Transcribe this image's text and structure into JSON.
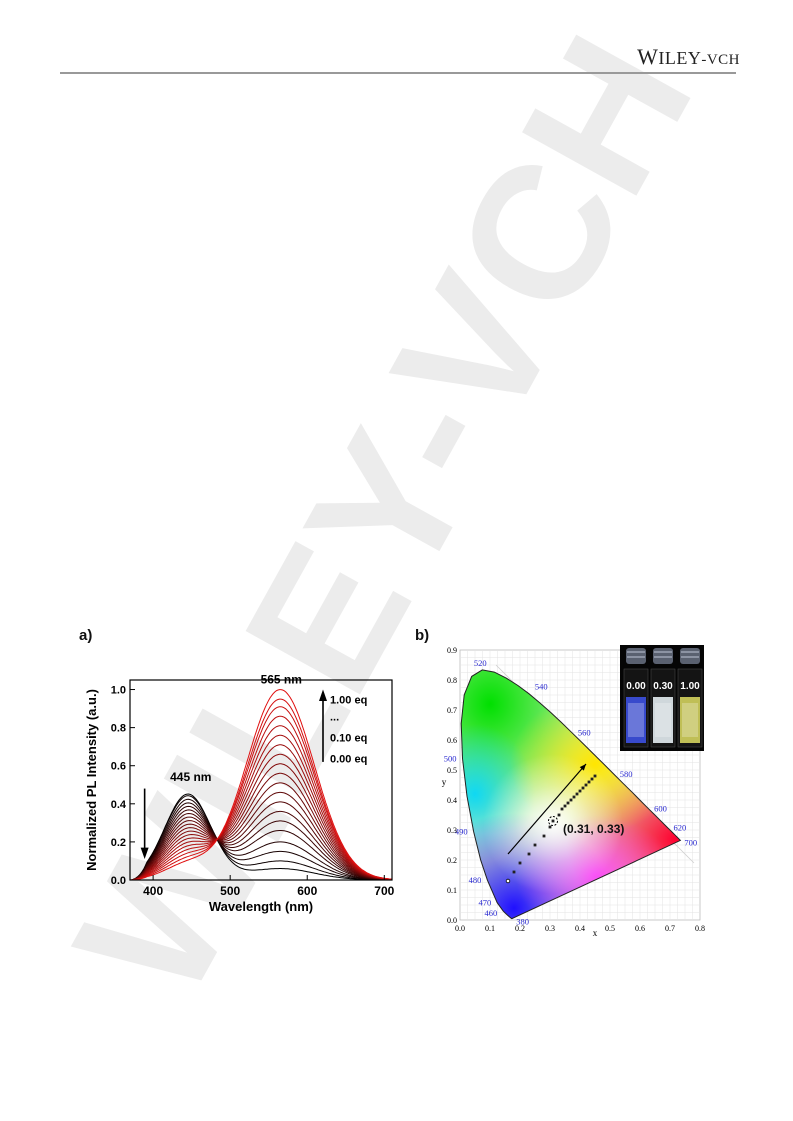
{
  "header": {
    "publisher_big": "W",
    "publisher_rest": "ILEY",
    "publisher_suffix": "-VCH"
  },
  "watermark": {
    "text": "WILEY-VCH"
  },
  "figure": {
    "panel_a_label": "a)",
    "panel_b_label": "b)"
  },
  "chart_data": [
    {
      "type": "line",
      "xlabel": "Wavelength (nm)",
      "ylabel": "Normalized PL Intensity (a.u.)",
      "xlim": [
        370,
        710
      ],
      "ylim": [
        0.0,
        1.05
      ],
      "xticks": [
        400,
        500,
        600,
        700
      ],
      "yticks": [
        0.0,
        0.2,
        0.4,
        0.6,
        0.8,
        1.0
      ],
      "annotations": [
        "445 nm",
        "565 nm"
      ],
      "legend_labels": [
        "1.00 eq",
        "...",
        "0.10 eq",
        "0.00 eq"
      ],
      "isosbestic_point": {
        "x": 500,
        "y": 0.2
      },
      "series_colors": {
        "start": "#000000",
        "end": "#e01010"
      },
      "series": [
        {
          "name": "0.00 eq",
          "peak1_nm": 445,
          "peak1": 0.45,
          "peak2_nm": 565,
          "peak2": 0.06
        },
        {
          "peak1_nm": 445,
          "peak1": 0.44,
          "peak2_nm": 565,
          "peak2": 0.1
        },
        {
          "peak1_nm": 445,
          "peak1": 0.42,
          "peak2_nm": 565,
          "peak2": 0.15
        },
        {
          "peak1_nm": 445,
          "peak1": 0.4,
          "peak2_nm": 565,
          "peak2": 0.2
        },
        {
          "peak1_nm": 445,
          "peak1": 0.38,
          "peak2_nm": 565,
          "peak2": 0.26
        },
        {
          "peak1_nm": 445,
          "peak1": 0.36,
          "peak2_nm": 565,
          "peak2": 0.31
        },
        {
          "peak1_nm": 445,
          "peak1": 0.34,
          "peak2_nm": 565,
          "peak2": 0.36
        },
        {
          "peak1_nm": 445,
          "peak1": 0.32,
          "peak2_nm": 565,
          "peak2": 0.41
        },
        {
          "peak1_nm": 445,
          "peak1": 0.3,
          "peak2_nm": 565,
          "peak2": 0.46
        },
        {
          "peak1_nm": 445,
          "peak1": 0.28,
          "peak2_nm": 565,
          "peak2": 0.51
        },
        {
          "name": "0.10 eq",
          "peak1_nm": 445,
          "peak1": 0.26,
          "peak2_nm": 565,
          "peak2": 0.56
        },
        {
          "peak1_nm": 445,
          "peak1": 0.24,
          "peak2_nm": 565,
          "peak2": 0.61
        },
        {
          "peak1_nm": 445,
          "peak1": 0.22,
          "peak2_nm": 565,
          "peak2": 0.66
        },
        {
          "peak1_nm": 445,
          "peak1": 0.2,
          "peak2_nm": 565,
          "peak2": 0.71
        },
        {
          "peak1_nm": 445,
          "peak1": 0.18,
          "peak2_nm": 565,
          "peak2": 0.76
        },
        {
          "peak1_nm": 445,
          "peak1": 0.16,
          "peak2_nm": 565,
          "peak2": 0.81
        },
        {
          "peak1_nm": 445,
          "peak1": 0.14,
          "peak2_nm": 565,
          "peak2": 0.86
        },
        {
          "peak1_nm": 445,
          "peak1": 0.12,
          "peak2_nm": 565,
          "peak2": 0.91
        },
        {
          "peak1_nm": 445,
          "peak1": 0.1,
          "peak2_nm": 565,
          "peak2": 0.95
        },
        {
          "name": "1.00 eq",
          "peak1_nm": 445,
          "peak1": 0.08,
          "peak2_nm": 565,
          "peak2": 1.0
        }
      ]
    },
    {
      "type": "scatter",
      "xlabel": "x",
      "ylabel": "y",
      "xlim": [
        0.0,
        0.8
      ],
      "ylim": [
        0.0,
        0.9
      ],
      "xticks": [
        0.0,
        0.1,
        0.2,
        0.3,
        0.4,
        0.5,
        0.6,
        0.7,
        0.8
      ],
      "yticks": [
        0.0,
        0.1,
        0.2,
        0.3,
        0.4,
        0.5,
        0.6,
        0.7,
        0.8,
        0.9
      ],
      "grid": true,
      "spectral_locus_labels": [
        {
          "nm": "380",
          "x": 0.1741,
          "y": 0.005
        },
        {
          "nm": "460",
          "x": 0.144,
          "y": 0.0297
        },
        {
          "nm": "470",
          "x": 0.1241,
          "y": 0.0578
        },
        {
          "nm": "480",
          "x": 0.0913,
          "y": 0.1327
        },
        {
          "nm": "490",
          "x": 0.0454,
          "y": 0.295
        },
        {
          "nm": "500",
          "x": 0.0082,
          "y": 0.5384
        },
        {
          "nm": "520",
          "x": 0.0743,
          "y": 0.8338
        },
        {
          "nm": "540",
          "x": 0.2296,
          "y": 0.7543
        },
        {
          "nm": "560",
          "x": 0.3731,
          "y": 0.6245
        },
        {
          "nm": "580",
          "x": 0.5125,
          "y": 0.4866
        },
        {
          "nm": "600",
          "x": 0.627,
          "y": 0.3725
        },
        {
          "nm": "620",
          "x": 0.6915,
          "y": 0.3083
        },
        {
          "nm": "700",
          "x": 0.7347,
          "y": 0.2653
        }
      ],
      "locus_points": [
        [
          0.1741,
          0.005
        ],
        [
          0.1738,
          0.0049
        ],
        [
          0.1736,
          0.0049
        ],
        [
          0.1733,
          0.0048
        ],
        [
          0.1726,
          0.0048
        ],
        [
          0.1714,
          0.0051
        ],
        [
          0.1689,
          0.0069
        ],
        [
          0.1644,
          0.0109
        ],
        [
          0.1566,
          0.0177
        ],
        [
          0.144,
          0.0297
        ],
        [
          0.1241,
          0.0578
        ],
        [
          0.0913,
          0.1327
        ],
        [
          0.0687,
          0.2007
        ],
        [
          0.0454,
          0.295
        ],
        [
          0.0235,
          0.4127
        ],
        [
          0.0082,
          0.5384
        ],
        [
          0.0039,
          0.6548
        ],
        [
          0.0139,
          0.7502
        ],
        [
          0.0389,
          0.812
        ],
        [
          0.0743,
          0.8338
        ],
        [
          0.1142,
          0.8262
        ],
        [
          0.1547,
          0.8059
        ],
        [
          0.1929,
          0.7816
        ],
        [
          0.2296,
          0.7543
        ],
        [
          0.2658,
          0.7243
        ],
        [
          0.3016,
          0.6923
        ],
        [
          0.3373,
          0.6589
        ],
        [
          0.3731,
          0.6245
        ],
        [
          0.4087,
          0.5896
        ],
        [
          0.4441,
          0.5547
        ],
        [
          0.4788,
          0.5202
        ],
        [
          0.5125,
          0.4866
        ],
        [
          0.5448,
          0.4544
        ],
        [
          0.5752,
          0.4242
        ],
        [
          0.6029,
          0.3965
        ],
        [
          0.627,
          0.3725
        ],
        [
          0.6482,
          0.3514
        ],
        [
          0.6658,
          0.334
        ],
        [
          0.6801,
          0.3197
        ],
        [
          0.6915,
          0.3083
        ],
        [
          0.7006,
          0.2993
        ],
        [
          0.7079,
          0.292
        ],
        [
          0.714,
          0.2859
        ],
        [
          0.719,
          0.2809
        ],
        [
          0.723,
          0.277
        ],
        [
          0.726,
          0.274
        ],
        [
          0.7283,
          0.2717
        ],
        [
          0.73,
          0.27
        ],
        [
          0.7311,
          0.2689
        ],
        [
          0.732,
          0.268
        ],
        [
          0.7327,
          0.2673
        ],
        [
          0.7334,
          0.2666
        ],
        [
          0.734,
          0.266
        ],
        [
          0.7344,
          0.2656
        ],
        [
          0.7346,
          0.2654
        ],
        [
          0.7347,
          0.2653
        ]
      ],
      "data_points": [
        [
          0.16,
          0.13
        ],
        [
          0.18,
          0.16
        ],
        [
          0.2,
          0.19
        ],
        [
          0.23,
          0.22
        ],
        [
          0.25,
          0.25
        ],
        [
          0.28,
          0.28
        ],
        [
          0.3,
          0.31
        ],
        [
          0.31,
          0.33
        ],
        [
          0.33,
          0.35
        ],
        [
          0.34,
          0.37
        ],
        [
          0.35,
          0.38
        ],
        [
          0.36,
          0.39
        ],
        [
          0.37,
          0.4
        ],
        [
          0.38,
          0.41
        ],
        [
          0.39,
          0.42
        ],
        [
          0.4,
          0.43
        ],
        [
          0.41,
          0.44
        ],
        [
          0.42,
          0.45
        ],
        [
          0.43,
          0.46
        ],
        [
          0.44,
          0.47
        ],
        [
          0.45,
          0.48
        ]
      ],
      "highlight_point": {
        "x": 0.31,
        "y": 0.33,
        "label": "(0.31, 0.33)"
      },
      "arrow": {
        "from": [
          0.16,
          0.22
        ],
        "to": [
          0.42,
          0.52
        ]
      },
      "inset_labels": [
        "0.00",
        "0.30",
        "1.00"
      ],
      "inset_vial_colors": [
        "#3a4dd6",
        "#d9e2e6",
        "#c9c85a"
      ]
    }
  ]
}
